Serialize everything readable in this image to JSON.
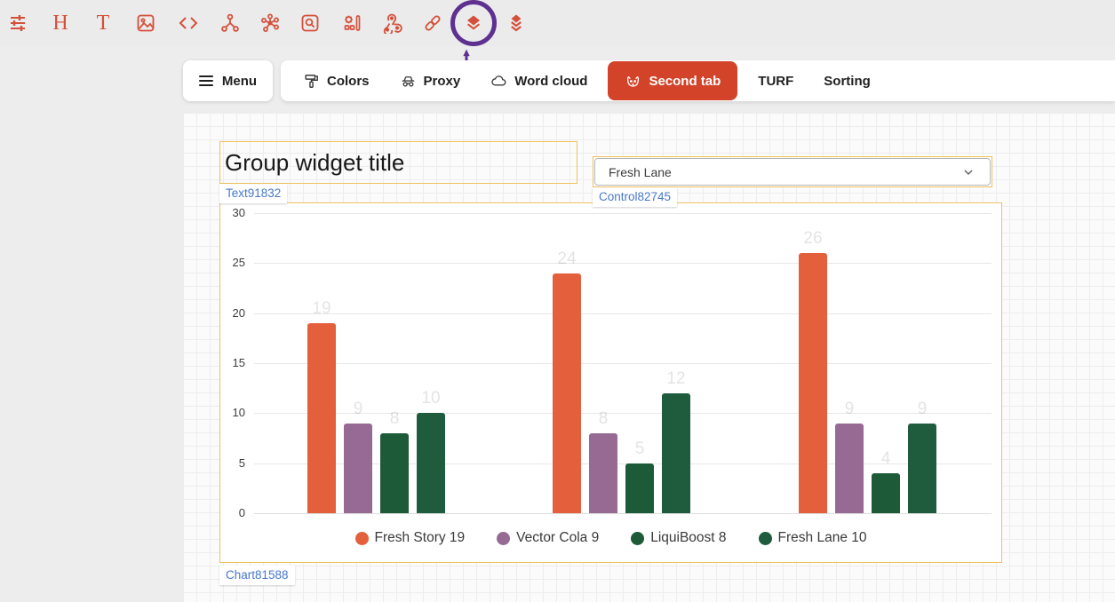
{
  "toolbar": {
    "icons": [
      "tune-icon",
      "heading-icon",
      "text-icon",
      "image-icon",
      "code-icon",
      "graph-icon",
      "cluster-icon",
      "search-box-icon",
      "settings-panel-icon",
      "webhook-icon",
      "link-icon",
      "layers-icon",
      "layers-stack-icon"
    ],
    "heading_glyph": "H",
    "text_glyph": "T",
    "accent_color": "#d4503a"
  },
  "annotation": {
    "color": "#5e3191",
    "target": "layers-icon"
  },
  "tabbar": {
    "menu_label": "Menu",
    "tabs": [
      {
        "label": "Colors",
        "icon": "paint-roller-icon",
        "active": false
      },
      {
        "label": "Proxy",
        "icon": "incognito-icon",
        "active": false
      },
      {
        "label": "Word cloud",
        "icon": "cloud-icon",
        "active": false
      },
      {
        "label": "Second tab",
        "icon": "dog-icon",
        "active": true
      },
      {
        "label": "TURF",
        "icon": null,
        "active": false
      },
      {
        "label": "Sorting",
        "icon": null,
        "active": false
      }
    ],
    "active_tab_bg": "#d2432a"
  },
  "canvas": {
    "text_widget": {
      "text": "Group widget title",
      "tag": "Text91832"
    },
    "control_widget": {
      "value": "Fresh Lane",
      "tag": "Control82745"
    },
    "chart_widget": {
      "tag": "Chart81588"
    },
    "widget_border_color": "#efc05f",
    "tag_text_color": "#4878c8"
  },
  "chart_data": {
    "type": "bar",
    "categories": [
      "",
      "",
      ""
    ],
    "series": [
      {
        "name": "Fresh Story 19",
        "color": "#e4603c",
        "values": [
          19,
          24,
          26
        ]
      },
      {
        "name": "Vector Cola 9",
        "color": "#976a94",
        "values": [
          9,
          8,
          9
        ]
      },
      {
        "name": "LiquiBoost 8",
        "color": "#1d5a37",
        "values": [
          8,
          5,
          4
        ]
      },
      {
        "name": "Fresh Lane 10",
        "color": "#1e5c3d",
        "values": [
          10,
          12,
          9
        ]
      }
    ],
    "title": "",
    "xlabel": "",
    "ylabel": "",
    "ylim": [
      0,
      30
    ],
    "yticks": [
      0,
      5,
      10,
      15,
      20,
      25,
      30
    ],
    "grid": true,
    "legend_position": "bottom",
    "value_labels_shown": true
  }
}
